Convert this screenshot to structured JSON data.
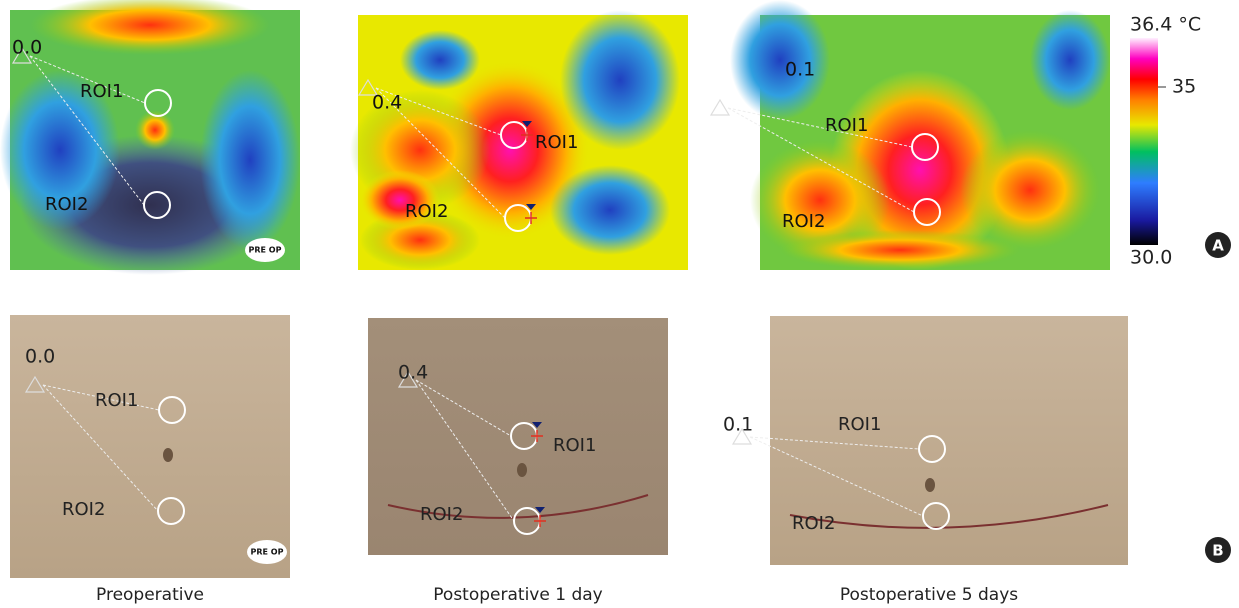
{
  "panels": [
    {
      "caption": "Preoperative",
      "thermal": {
        "value": "0.0",
        "roi1": "ROI1",
        "roi2": "ROI2",
        "badge": "PRE OP"
      },
      "photo": {
        "value": "0.0",
        "roi1": "ROI1",
        "roi2": "ROI2",
        "badge": "PRE OP"
      }
    },
    {
      "caption": "Postoperative 1 day",
      "thermal": {
        "value": "0.4",
        "roi1": "ROI1",
        "roi2": "ROI2"
      },
      "photo": {
        "value": "0.4",
        "roi1": "ROI1",
        "roi2": "ROI2"
      }
    },
    {
      "caption": "Postoperative 5 days",
      "thermal": {
        "value": "0.1",
        "roi1": "ROI1",
        "roi2": "ROI2"
      },
      "photo": {
        "value": "0.1",
        "roi1": "ROI1",
        "roi2": "ROI2"
      }
    }
  ],
  "colorbar": {
    "max": "36.4 °C",
    "mid": "35",
    "min": "30.0"
  },
  "labels": {
    "a": "A",
    "b": "B"
  }
}
